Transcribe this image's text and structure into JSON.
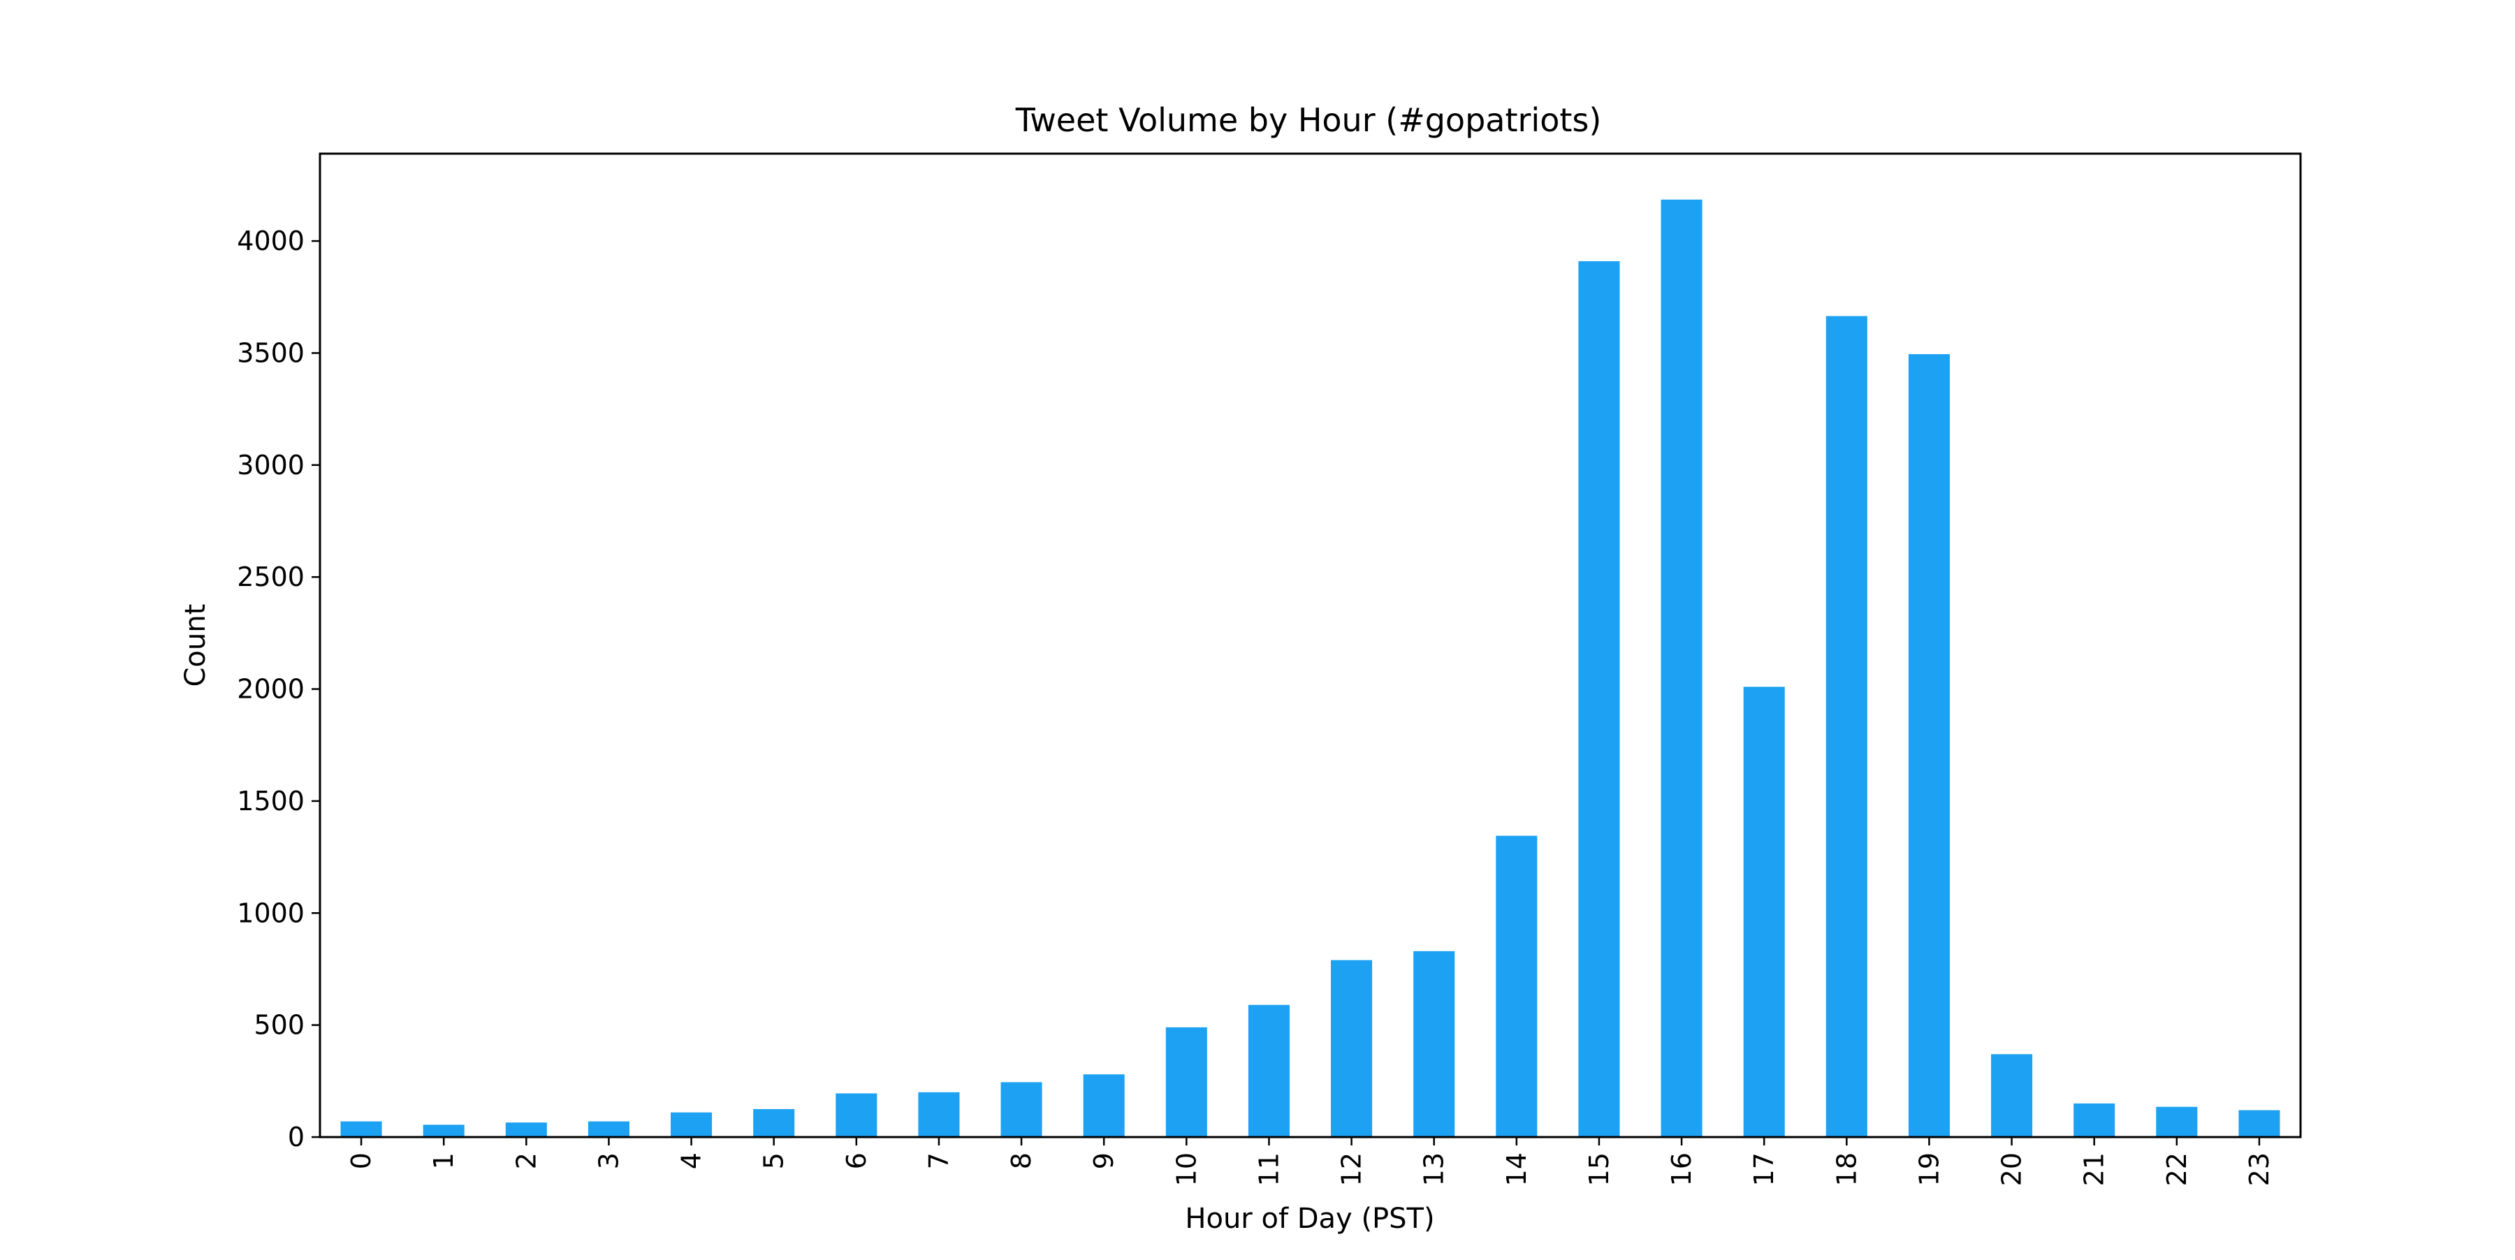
{
  "chart_data": {
    "type": "bar",
    "title": "Tweet Volume by Hour (#gopatriots)",
    "xlabel": "Hour of Day (PST)",
    "ylabel": "Count",
    "categories": [
      "0",
      "1",
      "2",
      "3",
      "4",
      "5",
      "6",
      "7",
      "8",
      "9",
      "10",
      "11",
      "12",
      "13",
      "14",
      "15",
      "16",
      "17",
      "18",
      "19",
      "20",
      "21",
      "22",
      "23"
    ],
    "values": [
      70,
      55,
      65,
      70,
      110,
      125,
      195,
      200,
      245,
      280,
      490,
      590,
      790,
      830,
      1345,
      3910,
      4185,
      2010,
      3665,
      3495,
      370,
      150,
      135,
      120
    ],
    "ylim": [
      0,
      4390
    ],
    "yticks": [
      0,
      500,
      1000,
      1500,
      2000,
      2500,
      3000,
      3500,
      4000
    ],
    "bar_color": "#1da1f2",
    "grid": false,
    "legend": "none"
  }
}
